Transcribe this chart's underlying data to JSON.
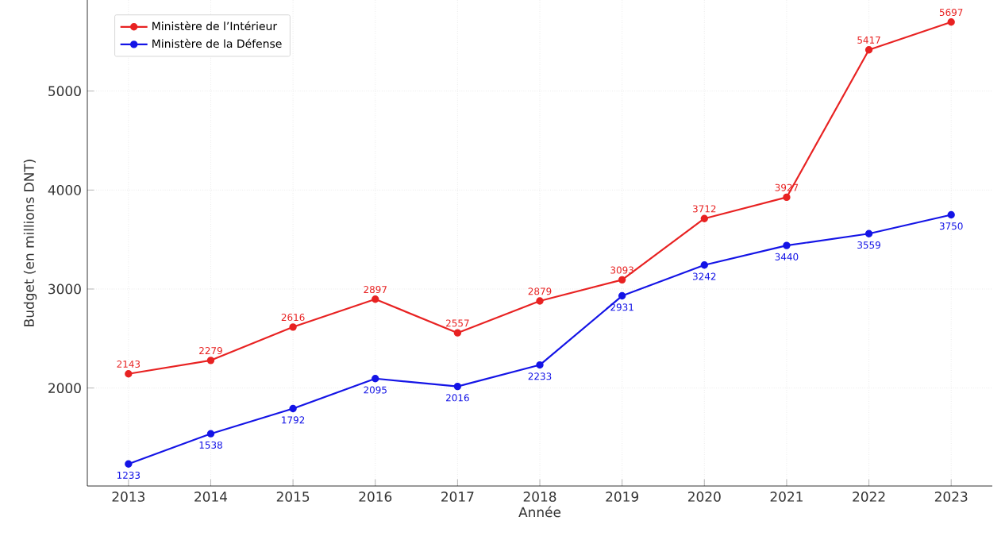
{
  "chart_data": {
    "type": "line",
    "xlabel": "Année",
    "ylabel": "Budget (en millions DNT)",
    "x": [
      2013,
      2014,
      2015,
      2016,
      2017,
      2018,
      2019,
      2020,
      2021,
      2022,
      2023
    ],
    "series": [
      {
        "name": "Ministère de l’Intérieur",
        "color": "#e82222",
        "values": [
          2143,
          2279,
          2616,
          2897,
          2557,
          2879,
          3093,
          3712,
          3927,
          5417,
          5697
        ]
      },
      {
        "name": "Ministère de la Défense",
        "color": "#1414e6",
        "values": [
          1233,
          1538,
          1792,
          2095,
          2016,
          2233,
          2931,
          3242,
          3440,
          3559,
          3750
        ]
      }
    ],
    "xlim": [
      2012.5,
      2023.5
    ],
    "ylim": [
      1010,
      5920
    ],
    "xticks": [
      2013,
      2014,
      2015,
      2016,
      2017,
      2018,
      2019,
      2020,
      2021,
      2022,
      2023
    ],
    "yticks": [
      2000,
      3000,
      4000,
      5000
    ],
    "grid": true,
    "legend": "top left",
    "marker": "circle",
    "line_style": "solid",
    "data_labels": true
  }
}
